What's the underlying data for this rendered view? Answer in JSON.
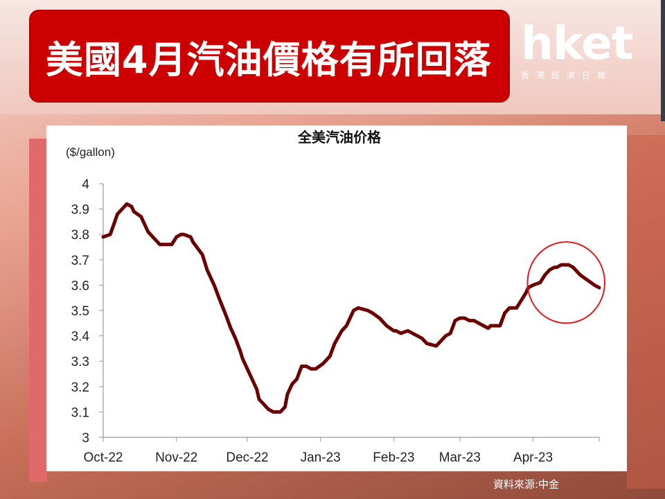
{
  "headline": {
    "title": "美國4月汽油價格有所回落"
  },
  "logo": {
    "brand": "hket",
    "subtitle": "香港經濟日報"
  },
  "source": "資料來源:中金",
  "colors": {
    "headline_bg": "#cc0000",
    "line": "#6b0000",
    "highlight_circle": "#e31919"
  },
  "chart_data": {
    "type": "line",
    "title": "全美汽油价格",
    "ylabel": "($/gallon)",
    "xlabel": "",
    "ylim": [
      3,
      4
    ],
    "yticks": [
      3,
      3.1,
      3.2,
      3.3,
      3.4,
      3.5,
      3.6,
      3.7,
      3.8,
      3.9,
      4
    ],
    "xlim": [
      0,
      210
    ],
    "x_ticks": [
      {
        "x": 0,
        "label": "Oct-22"
      },
      {
        "x": 31,
        "label": "Nov-22"
      },
      {
        "x": 61,
        "label": "Dec-22"
      },
      {
        "x": 92,
        "label": "Jan-23"
      },
      {
        "x": 123,
        "label": "Feb-23"
      },
      {
        "x": 151,
        "label": "Mar-23"
      },
      {
        "x": 182,
        "label": "Apr-23"
      }
    ],
    "x_note": "x = days after the Oct-22 tick",
    "series": [
      {
        "x": [
          0,
          3,
          6,
          9,
          10,
          12,
          13,
          16,
          19,
          21,
          24,
          26,
          29,
          31,
          33,
          34,
          37,
          38,
          42,
          44,
          47,
          49,
          52,
          54,
          56,
          58,
          59,
          61,
          65,
          66,
          70,
          72,
          75,
          77,
          78,
          80,
          82,
          84,
          86,
          88,
          90,
          93,
          96,
          98,
          101,
          103,
          106,
          108,
          112,
          114,
          117,
          120,
          123,
          124,
          126,
          129,
          131,
          133,
          135,
          137,
          141,
          143,
          145,
          147,
          149,
          151,
          153,
          155,
          157,
          159,
          161,
          163,
          164,
          166,
          168,
          170,
          172,
          175,
          177,
          179,
          180,
          182,
          185,
          187,
          189,
          191,
          192,
          194,
          197,
          199,
          202,
          205,
          208,
          210
        ],
        "y": [
          3.79,
          3.8,
          3.88,
          3.91,
          3.92,
          3.91,
          3.89,
          3.87,
          3.81,
          3.79,
          3.76,
          3.76,
          3.76,
          3.79,
          3.8,
          3.8,
          3.79,
          3.77,
          3.72,
          3.66,
          3.6,
          3.55,
          3.48,
          3.43,
          3.39,
          3.34,
          3.31,
          3.27,
          3.19,
          3.15,
          3.11,
          3.1,
          3.1,
          3.12,
          3.17,
          3.21,
          3.23,
          3.28,
          3.28,
          3.27,
          3.27,
          3.29,
          3.32,
          3.37,
          3.42,
          3.44,
          3.5,
          3.51,
          3.5,
          3.49,
          3.47,
          3.44,
          3.42,
          3.42,
          3.41,
          3.42,
          3.41,
          3.4,
          3.39,
          3.37,
          3.36,
          3.38,
          3.4,
          3.41,
          3.46,
          3.47,
          3.47,
          3.46,
          3.46,
          3.45,
          3.44,
          3.43,
          3.44,
          3.44,
          3.44,
          3.49,
          3.51,
          3.51,
          3.54,
          3.57,
          3.59,
          3.6,
          3.61,
          3.64,
          3.66,
          3.67,
          3.67,
          3.68,
          3.68,
          3.67,
          3.64,
          3.62,
          3.6,
          3.59
        ]
      }
    ],
    "annotation": {
      "shape": "ellipse",
      "x_range": [
        182,
        210
      ],
      "y_range": [
        3.45,
        3.77
      ]
    },
    "grid": false,
    "legend": "none"
  }
}
